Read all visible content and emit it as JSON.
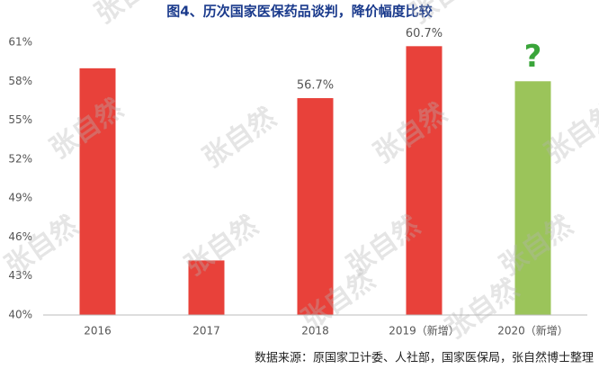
{
  "chart_data": {
    "type": "bar",
    "title": "图4、历次国家医保药品谈判，降价幅度比较",
    "categories": [
      "2016",
      "2017",
      "2018",
      "2019（新增）",
      "2020（新增）"
    ],
    "values": [
      59.0,
      44.2,
      56.7,
      60.7,
      58.0
    ],
    "value_labels": [
      null,
      null,
      "56.7%",
      "60.7%",
      null
    ],
    "colors": [
      "#e8413a",
      "#e8413a",
      "#e8413a",
      "#e8413a",
      "#9bc45a"
    ],
    "annotation": "?",
    "annotation_color": "#3aa53a",
    "ylim": [
      40,
      61
    ],
    "yticks": [
      {
        "value": 40,
        "label": "40%"
      },
      {
        "value": 43,
        "label": "43%"
      },
      {
        "value": 46,
        "label": "46%"
      },
      {
        "value": 49,
        "label": "49%"
      },
      {
        "value": 52,
        "label": "52%"
      },
      {
        "value": 55,
        "label": "55%"
      },
      {
        "value": 58,
        "label": "58%"
      },
      {
        "value": 61,
        "label": "61%"
      }
    ],
    "grid": false,
    "source": "数据来源：原国家卫计委、人社部，国家医保局，张自然博士整理",
    "watermark": "张自然"
  }
}
